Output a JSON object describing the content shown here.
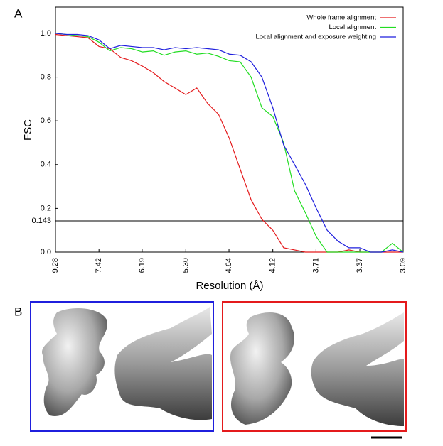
{
  "panels": [
    "A",
    "B"
  ],
  "chart_data": {
    "type": "line",
    "x_label": "Resolution (Å)",
    "y_label": "FSC",
    "x": [
      0.1078,
      0.1145,
      0.1213,
      0.128,
      0.1348,
      0.1415,
      0.1483,
      0.155,
      0.1618,
      0.1685,
      0.1752,
      0.182,
      0.1887,
      0.1955,
      0.2022,
      0.209,
      0.2157,
      0.2224,
      0.2292,
      0.2359,
      0.2427,
      0.2494,
      0.2562,
      0.2629,
      0.2697,
      0.2764,
      0.2831,
      0.2899,
      0.2966,
      0.3034,
      0.3101,
      0.3169,
      0.3236
    ],
    "series": [
      {
        "name": "Whole frame alignment",
        "color": "#e41a1c",
        "values": [
          0.995,
          0.99,
          0.985,
          0.98,
          0.94,
          0.93,
          0.89,
          0.875,
          0.85,
          0.82,
          0.78,
          0.75,
          0.72,
          0.75,
          0.68,
          0.63,
          0.52,
          0.38,
          0.24,
          0.15,
          0.1,
          0.02,
          0.01,
          0.0,
          0.0,
          0.0,
          0.0,
          0.01,
          0.0,
          0.0,
          0.0,
          0.0,
          0.0
        ]
      },
      {
        "name": "Local alignment",
        "color": "#22dd22",
        "values": [
          1.0,
          0.995,
          0.99,
          0.985,
          0.96,
          0.92,
          0.935,
          0.93,
          0.915,
          0.92,
          0.9,
          0.915,
          0.92,
          0.905,
          0.91,
          0.895,
          0.875,
          0.87,
          0.8,
          0.66,
          0.62,
          0.5,
          0.28,
          0.18,
          0.07,
          0.0,
          0.0,
          0.0,
          0.0,
          0.0,
          0.0,
          0.04,
          0.0
        ]
      },
      {
        "name": "Local alignment and exposure weighting",
        "color": "#1f1fdd",
        "values": [
          1.0,
          0.995,
          0.995,
          0.99,
          0.97,
          0.93,
          0.945,
          0.94,
          0.935,
          0.935,
          0.925,
          0.935,
          0.93,
          0.935,
          0.93,
          0.925,
          0.905,
          0.9,
          0.87,
          0.8,
          0.66,
          0.49,
          0.4,
          0.31,
          0.2,
          0.1,
          0.05,
          0.02,
          0.02,
          0.0,
          0.0,
          0.01,
          0.0
        ]
      }
    ],
    "xlim": [
      0.1078,
      0.3236
    ],
    "xticks": [
      {
        "value": 0.1078,
        "label": "9.28"
      },
      {
        "value": 0.1348,
        "label": "7.42"
      },
      {
        "value": 0.1616,
        "label": "6.19"
      },
      {
        "value": 0.1887,
        "label": "5.30"
      },
      {
        "value": 0.2155,
        "label": "4.64"
      },
      {
        "value": 0.2427,
        "label": "4.12"
      },
      {
        "value": 0.2695,
        "label": "3.71"
      },
      {
        "value": 0.2967,
        "label": "3.37"
      },
      {
        "value": 0.3236,
        "label": "3.09"
      }
    ],
    "ylim": [
      0,
      1.12
    ],
    "yticks": [
      {
        "value": 0,
        "label": "0.0"
      },
      0.2,
      0.4,
      0.6,
      0.8,
      {
        "value": 1,
        "label": "1.0"
      }
    ],
    "reference_line": 0.143,
    "grid": false,
    "legend": "top-right"
  }
}
